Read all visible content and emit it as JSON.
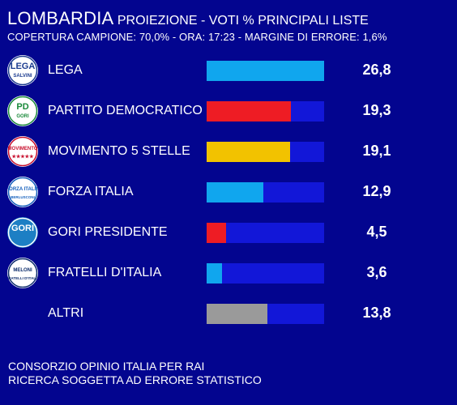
{
  "header": {
    "region": "LOMBARDIA",
    "subtitle": "PROIEZIONE - VOTI % PRINCIPALI LISTE",
    "coverage": "COPERTURA CAMPIONE: 70,0%  - ORA: 17:23 - MARGINE DI ERRORE: 1,6%"
  },
  "chart_data": {
    "type": "bar",
    "orientation": "horizontal",
    "categories": [
      "LEGA",
      "PARTITO DEMOCRATICO",
      "MOVIMENTO 5 STELLE",
      "FORZA ITALIA",
      "GORI PRESIDENTE",
      "FRATELLI D'ITALIA",
      "ALTRI"
    ],
    "values": [
      26.8,
      19.3,
      19.1,
      12.9,
      4.5,
      3.6,
      13.8
    ],
    "value_labels": [
      "26,8",
      "19,3",
      "19,1",
      "12,9",
      "4,5",
      "3,6",
      "13,8"
    ],
    "xlim": [
      0,
      26.8
    ],
    "bar_colors": [
      "#10a6ee",
      "#ee1c24",
      "#f2c200",
      "#10a6ee",
      "#ee1c24",
      "#10a6ee",
      "#9a9a9a"
    ],
    "track_color": "#1217d8"
  },
  "logos": [
    {
      "icon": "lega-salvini-logo",
      "text": [
        "LEGA",
        "SALVINI"
      ],
      "bg": "#ffffff",
      "fg": "#1b3b8f"
    },
    {
      "icon": "partito-democratico-gori-logo",
      "text": [
        "PD",
        "GORI"
      ],
      "bg": "#ffffff",
      "fg": "#1a8a3a"
    },
    {
      "icon": "movimento-5-stelle-logo",
      "text": [
        "MOVIMENTO",
        "★★★★★"
      ],
      "bg": "#ffffff",
      "fg": "#c8102e"
    },
    {
      "icon": "forza-italia-berlusconi-logo",
      "text": [
        "FORZA ITALIA",
        "BERLUSCONI"
      ],
      "bg": "#ffffff",
      "fg": "#1560bd"
    },
    {
      "icon": "gori-presidente-logo",
      "text": [
        "GORI",
        ""
      ],
      "bg": "#1d7fc4",
      "fg": "#ffffff"
    },
    {
      "icon": "fratelli-d-italia-meloni-logo",
      "text": [
        "MELONI",
        "FRATELLI D'ITALIA"
      ],
      "bg": "#ffffff",
      "fg": "#0d2d6c"
    },
    null
  ],
  "footer": {
    "line1": "CONSORZIO OPINIO ITALIA PER RAI",
    "line2": "RICERCA SOGGETTA AD ERRORE STATISTICO"
  }
}
